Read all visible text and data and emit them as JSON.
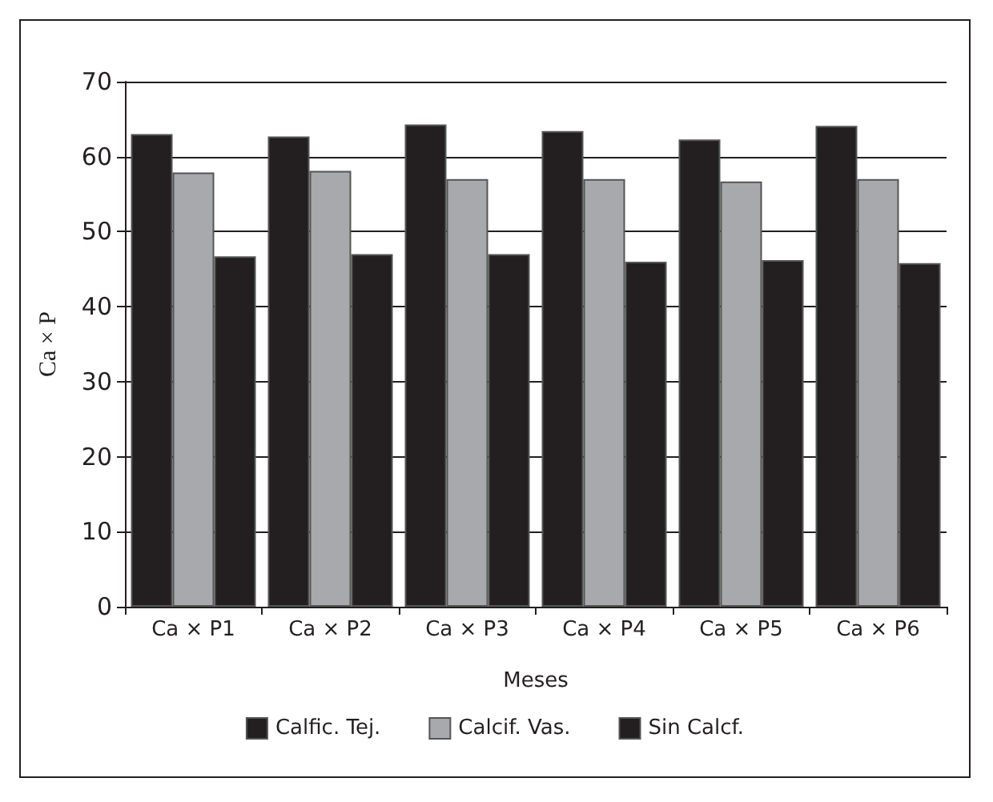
{
  "chart_data": {
    "type": "bar",
    "xlabel": "Meses",
    "ylabel": "Ca × P",
    "categories": [
      "Ca × P1",
      "Ca × P2",
      "Ca × P3",
      "Ca × P4",
      "Ca × P5",
      "Ca × P6"
    ],
    "series": [
      {
        "name": "Calfic. Tej.",
        "color": "#231f20",
        "values": [
          63.0,
          62.7,
          64.3,
          63.4,
          62.3,
          64.1
        ]
      },
      {
        "name": "Calcif. Vas.",
        "color": "#a7a9ac",
        "values": [
          57.9,
          58.1,
          57.0,
          57.0,
          56.7,
          57.0
        ]
      },
      {
        "name": "Sin Calcf.",
        "color": "#231f20",
        "values": [
          46.7,
          47.0,
          47.0,
          46.0,
          46.2,
          45.8
        ]
      }
    ],
    "ylim": [
      0,
      70
    ],
    "yticks": [
      0,
      10,
      20,
      30,
      40,
      50,
      60,
      70
    ],
    "grid": "y",
    "legend": "bottom"
  }
}
